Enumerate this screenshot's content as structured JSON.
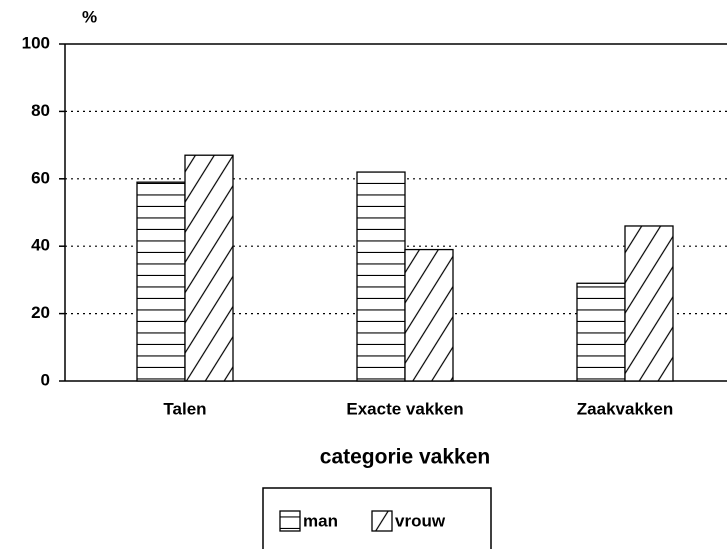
{
  "chart_data": {
    "type": "bar",
    "y_label": "%",
    "x_label": "categorie vakken",
    "categories": [
      "Talen",
      "Exacte vakken",
      "Zaakvakken"
    ],
    "series": [
      {
        "name": "man",
        "color": "#000000",
        "hatch": "horizontal",
        "values": [
          59,
          62,
          29
        ]
      },
      {
        "name": "vrouw",
        "color": "#000000",
        "hatch": "diagonal",
        "values": [
          67,
          39,
          46
        ]
      }
    ],
    "ylim": [
      0,
      100
    ],
    "yticks": [
      0,
      20,
      40,
      60,
      80,
      100
    ],
    "grid": true
  }
}
